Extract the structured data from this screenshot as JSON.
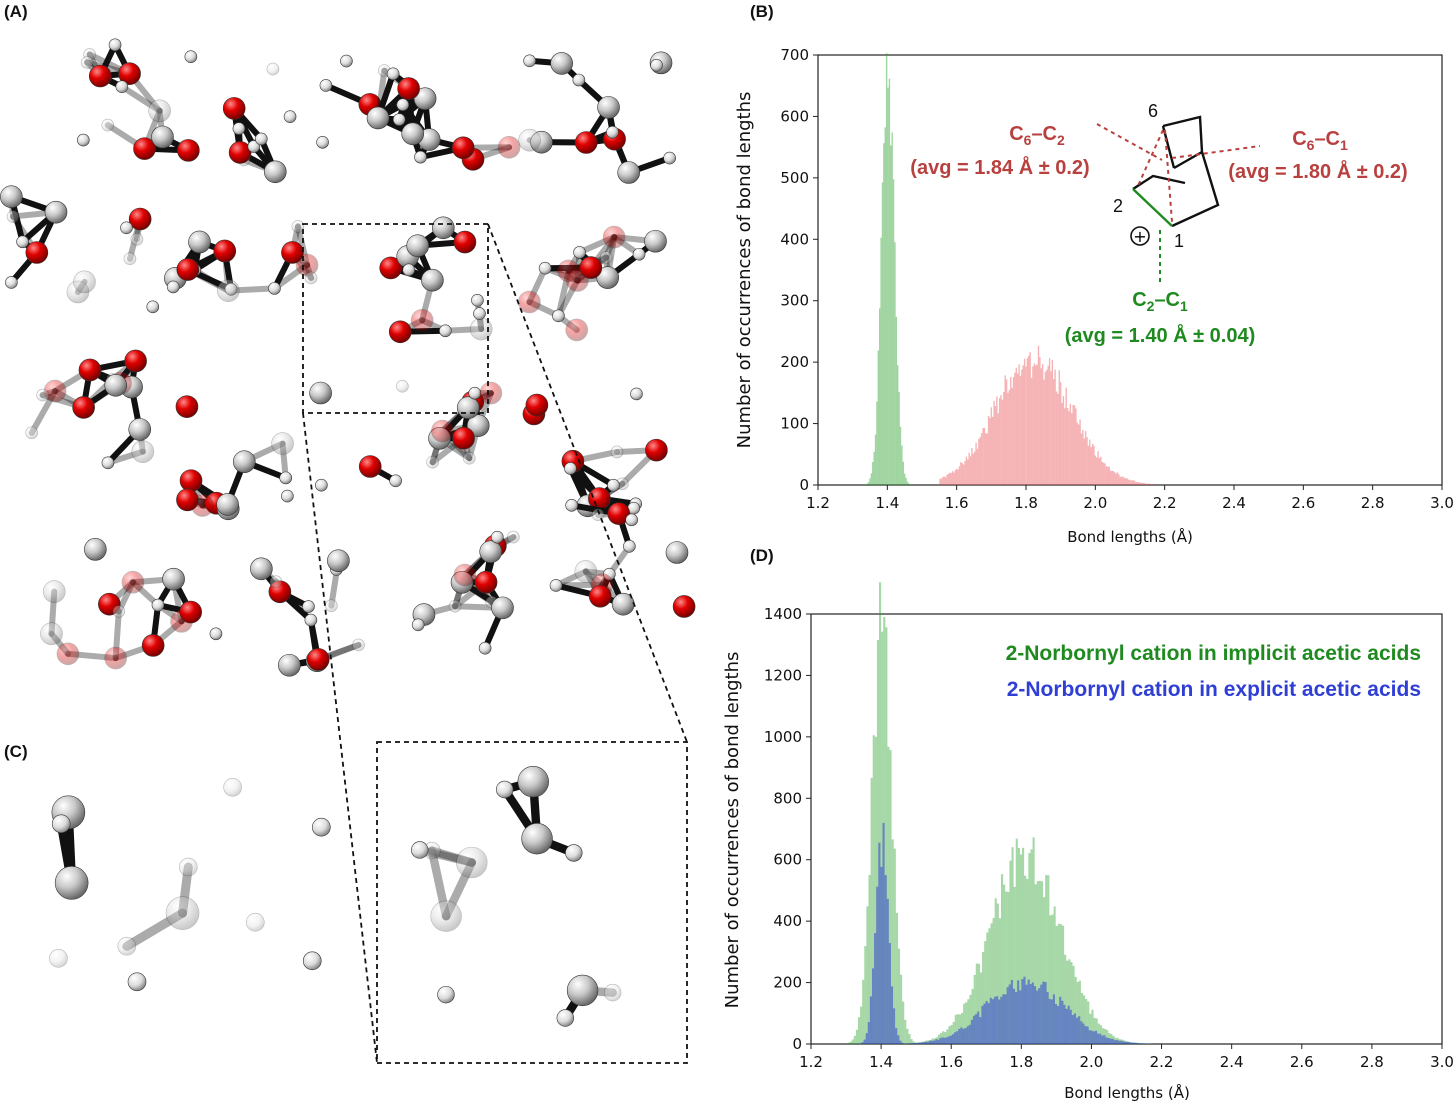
{
  "panels": {
    "A": "(A)",
    "B": "(B)",
    "C": "(C)",
    "D": "(D)"
  },
  "colors": {
    "green": "#2ca02c",
    "red": "#e8575a",
    "blue": "#2f3fd6",
    "annot_red": "#b8413f",
    "annot_green": "#1f8a1f",
    "oxygen": "#d40000",
    "carbon": "#b5b5b5"
  },
  "chart_data": [
    {
      "panel": "B",
      "type": "bar",
      "xlabel": "Bond lengths (Å)",
      "ylabel": "Number of occurrences of bond lengths",
      "xlim": [
        1.2,
        3.0
      ],
      "ylim": [
        0,
        700
      ],
      "xticks": [
        "1.2",
        "1.4",
        "1.6",
        "1.8",
        "2.0",
        "2.2",
        "2.4",
        "2.6",
        "2.8",
        "3.0"
      ],
      "yticks": [
        "0",
        "100",
        "200",
        "300",
        "400",
        "500",
        "600",
        "700"
      ],
      "series": [
        {
          "name": "C2–C1",
          "color": "green",
          "mean": 1.4,
          "std": 0.018,
          "peak": 665,
          "range": [
            1.32,
            1.48
          ]
        },
        {
          "name": "C6–C2 / C6–C1",
          "color": "red",
          "mean": 1.82,
          "std": 0.11,
          "peak": 205,
          "range": [
            1.55,
            2.17
          ]
        }
      ],
      "annotations": {
        "c6c2_label_a": "C",
        "c6c2_sub_a": "6",
        "c6c2_dash": "–C",
        "c6c2_sub_b": "2",
        "c6c2_avg": "(avg = 1.84 Å ± 0.2)",
        "c6c1_label_a": "C",
        "c6c1_sub_a": "6",
        "c6c1_dash": "–C",
        "c6c1_sub_b": "1",
        "c6c1_avg": "(avg = 1.80 Å ± 0.2)",
        "c2c1_label_a": "C",
        "c2c1_sub_a": "2",
        "c2c1_dash": "–C",
        "c2c1_sub_b": "1",
        "c2c1_avg": "(avg = 1.40 Å ± 0.04)",
        "atom_6": "6",
        "atom_2": "2",
        "atom_1": "1",
        "charge": "+"
      }
    },
    {
      "panel": "D",
      "type": "bar",
      "xlabel": "Bond lengths (Å)",
      "ylabel": "Number of occurrences of bond lengths",
      "xlim": [
        1.2,
        3.0
      ],
      "ylim": [
        0,
        1400
      ],
      "xticks": [
        "1.2",
        "1.4",
        "1.6",
        "1.8",
        "2.0",
        "2.2",
        "2.4",
        "2.6",
        "2.8",
        "3.0"
      ],
      "yticks": [
        "0",
        "200",
        "400",
        "600",
        "800",
        "1000",
        "1200",
        "1400"
      ],
      "legend": [
        {
          "label": "2-Norbornyl cation in implicit acetic acids",
          "color": "annot_green"
        },
        {
          "label": "2-Norbornyl cation in explicit acetic acids",
          "color": "blue"
        }
      ],
      "series": [
        {
          "name": "2-Norbornyl cation in implicit acetic acids",
          "color": "green",
          "peaks": [
            {
              "mean": 1.4,
              "std": 0.028,
              "peak": 1380
            },
            {
              "mean": 1.81,
              "std": 0.1,
              "peak": 620
            }
          ],
          "range": [
            1.28,
            2.36
          ]
        },
        {
          "name": "2-Norbornyl cation in explicit acetic acids",
          "color": "blue",
          "peaks": [
            {
              "mean": 1.4,
              "std": 0.018,
              "peak": 665
            },
            {
              "mean": 1.81,
              "std": 0.11,
              "peak": 205
            }
          ],
          "range": [
            1.32,
            2.17
          ]
        }
      ]
    }
  ]
}
